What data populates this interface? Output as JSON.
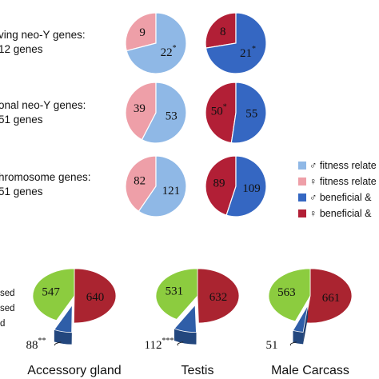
{
  "colors": {
    "male_fitness": "#8fb8e6",
    "female_fitness": "#ee9fa8",
    "male_beneficial": "#3567c2",
    "female_beneficial": "#b21f36",
    "green": "#8ccc3f",
    "blue3d": "#2f5ea8",
    "red3d": "#aa2430"
  },
  "chart_data": [
    {
      "type": "pie",
      "row_labels": [
        [
          "ving neo-Y genes:",
          " 12 genes"
        ],
        [
          "onal neo-Y genes:",
          " 51 genes"
        ],
        [
          "hromosome genes:",
          "51 genes"
        ]
      ],
      "left_pies": [
        {
          "values": [
            9,
            22
          ],
          "labels": [
            "9",
            "22"
          ],
          "sups": [
            "",
            "*"
          ]
        },
        {
          "values": [
            39,
            53
          ],
          "labels": [
            "39",
            "53"
          ],
          "sups": [
            "",
            ""
          ]
        },
        {
          "values": [
            82,
            121
          ],
          "labels": [
            "82",
            "121"
          ],
          "sups": [
            "",
            ""
          ]
        }
      ],
      "right_pies": [
        {
          "values": [
            8,
            21
          ],
          "labels": [
            "8",
            "21"
          ],
          "sups": [
            "",
            "*"
          ]
        },
        {
          "values": [
            50,
            55
          ],
          "labels": [
            "50",
            "55"
          ],
          "sups": [
            "*",
            ""
          ]
        },
        {
          "values": [
            89,
            109
          ],
          "labels": [
            "89",
            "109"
          ],
          "sups": [
            "",
            ""
          ]
        }
      ],
      "legend": {
        "entries": [
          {
            "symbol": "♂",
            "text": " fitness relate"
          },
          {
            "symbol": "♀",
            "text": " fitness relate"
          },
          {
            "symbol": "♂",
            "text": " beneficial &"
          },
          {
            "symbol": "♀",
            "text": " beneficial &"
          }
        ]
      }
    },
    {
      "type": "pie",
      "left_labels": [
        "sed",
        "sed",
        "d"
      ],
      "pies": [
        {
          "title": "Accessory gland",
          "values": [
            547,
            640,
            88
          ],
          "labels": [
            "547",
            "640",
            "88"
          ],
          "sup": "**"
        },
        {
          "title": "Testis",
          "values": [
            531,
            632,
            112
          ],
          "labels": [
            "531",
            "632",
            "112"
          ],
          "sup": "***"
        },
        {
          "title": "Male Carcass",
          "values": [
            563,
            661,
            51
          ],
          "labels": [
            "563",
            "661",
            "51"
          ],
          "sup": ""
        }
      ]
    }
  ]
}
